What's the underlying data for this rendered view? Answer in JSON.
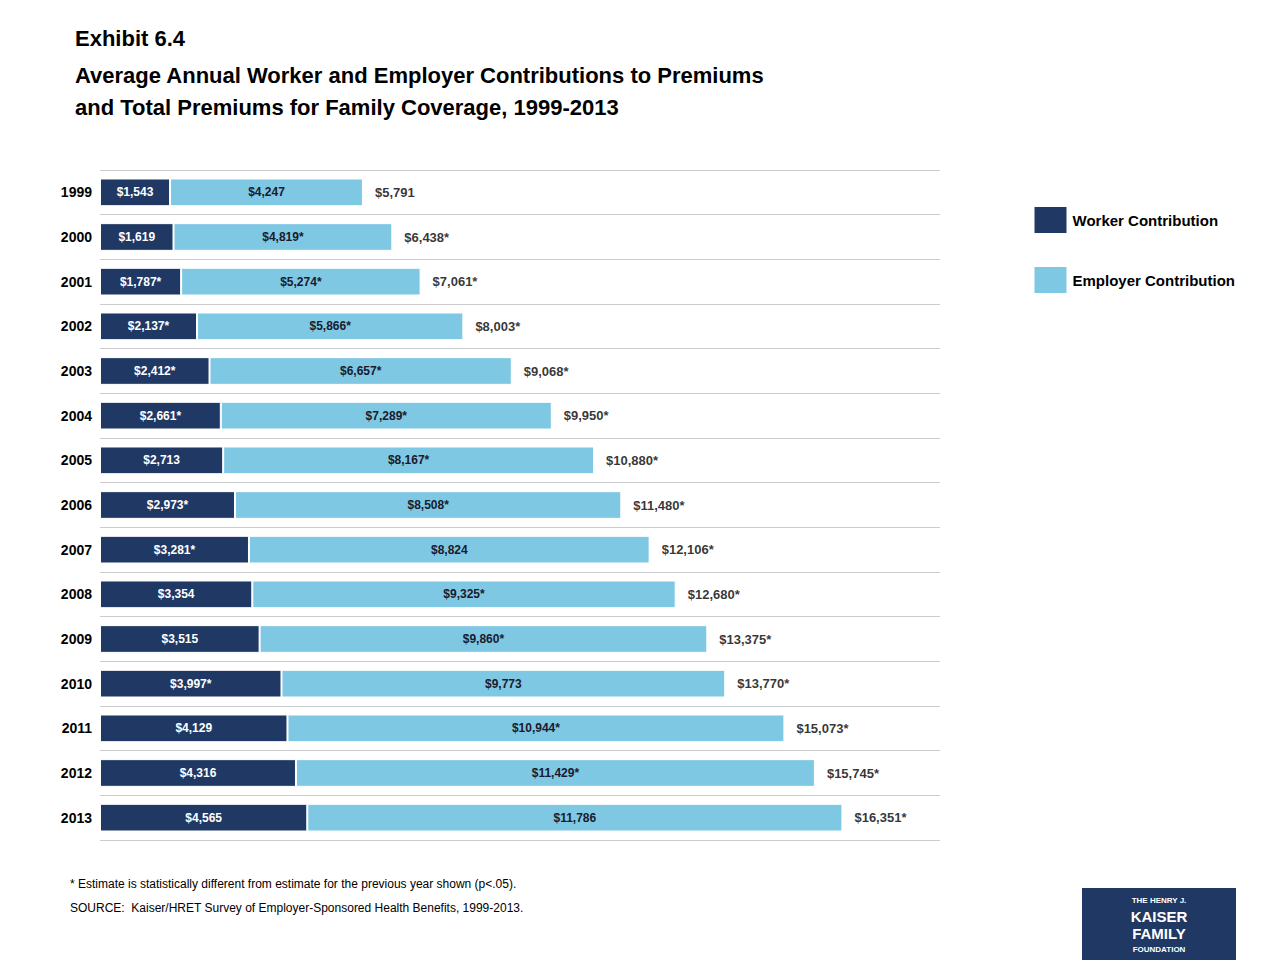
{
  "chart_data": {
    "type": "bar",
    "orientation": "horizontal",
    "stacked": true,
    "title": "Exhibit 6.4",
    "subtitle": "Average Annual Worker and Employer Contributions to Premiums\nand Total Premiums for Family Coverage, 1999-2013",
    "categories": [
      "1999",
      "2000",
      "2001",
      "2002",
      "2003",
      "2004",
      "2005",
      "2006",
      "2007",
      "2008",
      "2009",
      "2010",
      "2011",
      "2012",
      "2013"
    ],
    "series": [
      {
        "name": "Worker Contribution",
        "color": "#1f3864",
        "values": [
          1543,
          1619,
          1787,
          2137,
          2412,
          2661,
          2713,
          2973,
          3281,
          3354,
          3515,
          3997,
          4129,
          4316,
          4565
        ],
        "value_labels": [
          "$1,543",
          "$1,619",
          "$1,787*",
          "$2,137*",
          "$2,412*",
          "$2,661*",
          "$2,713",
          "$2,973*",
          "$3,281*",
          "$3,354",
          "$3,515",
          "$3,997*",
          "$4,129",
          "$4,316",
          "$4,565"
        ]
      },
      {
        "name": "Employer Contribution",
        "color": "#7ec8e3",
        "values": [
          4247,
          4819,
          5274,
          5866,
          6657,
          7289,
          8167,
          8508,
          8824,
          9325,
          9860,
          9773,
          10944,
          11429,
          11786
        ],
        "value_labels": [
          "$4,247",
          "$4,819*",
          "$5,274*",
          "$5,866*",
          "$6,657*",
          "$7,289*",
          "$8,167*",
          "$8,508*",
          "$8,824",
          "$9,325*",
          "$9,860*",
          "$9,773",
          "$10,944*",
          "$11,429*",
          "$11,786"
        ]
      }
    ],
    "totals": [
      5791,
      6438,
      7061,
      8003,
      9068,
      9950,
      10880,
      11480,
      12106,
      12680,
      13375,
      13770,
      15073,
      15745,
      16351
    ],
    "total_labels": [
      "$5,791",
      "$6,438*",
      "$7,061*",
      "$8,003*",
      "$9,068*",
      "$9,950*",
      "$10,880*",
      "$11,480*",
      "$12,106*",
      "$12,680*",
      "$13,375*",
      "$13,770*",
      "$15,073*",
      "$15,745*",
      "$16,351*"
    ],
    "data_labels": true,
    "xlim": [
      0,
      18500
    ],
    "tick_labels": "y",
    "grid": true,
    "legend": "upper right",
    "annotations": [
      "* Estimate is statistically different from estimate for the previous year shown (p<.05).",
      "SOURCE:  Kaiser/HRET Survey of Employer-Sponsored Health Benefits, 1999-2013."
    ],
    "logo": [
      "THE HENRY J.",
      "KAISER",
      "FAMILY",
      "FOUNDATION"
    ]
  }
}
